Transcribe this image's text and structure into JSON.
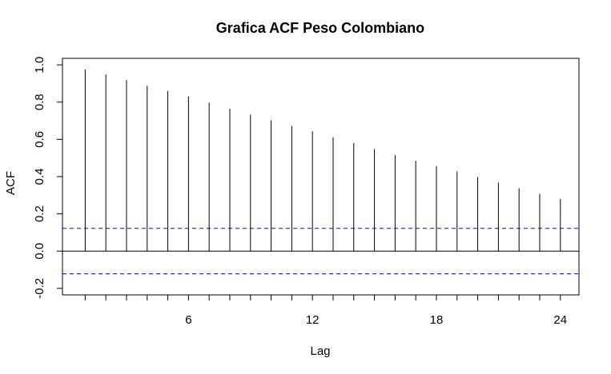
{
  "chart_data": {
    "type": "bar",
    "title": "Grafica ACF Peso Colombiano",
    "xlabel": "Lag",
    "ylabel": "ACF",
    "lags": [
      1,
      2,
      3,
      4,
      5,
      6,
      7,
      8,
      9,
      10,
      11,
      12,
      13,
      14,
      15,
      16,
      17,
      18,
      19,
      20,
      21,
      22,
      23,
      24
    ],
    "values": [
      0.975,
      0.948,
      0.918,
      0.888,
      0.86,
      0.83,
      0.797,
      0.765,
      0.733,
      0.702,
      0.672,
      0.643,
      0.611,
      0.58,
      0.548,
      0.515,
      0.485,
      0.457,
      0.428,
      0.398,
      0.368,
      0.338,
      0.308,
      0.28
    ],
    "xlim": [
      -0.1,
      24.9
    ],
    "ylim": [
      -0.235,
      1.035
    ],
    "x_ticks": [
      6,
      12,
      18,
      24
    ],
    "x_tick_labels": [
      "6",
      "12",
      "18",
      "24"
    ],
    "y_ticks": [
      -0.2,
      0.0,
      0.2,
      0.4,
      0.6,
      0.8,
      1.0
    ],
    "y_tick_labels": [
      "-0.2",
      "0.0",
      "0.2",
      "0.4",
      "0.6",
      "0.8",
      "1.0"
    ],
    "confidence_bounds": [
      0.122,
      -0.122
    ],
    "bound_color": "#0000ff",
    "line_color": "#000000",
    "grid": false
  }
}
